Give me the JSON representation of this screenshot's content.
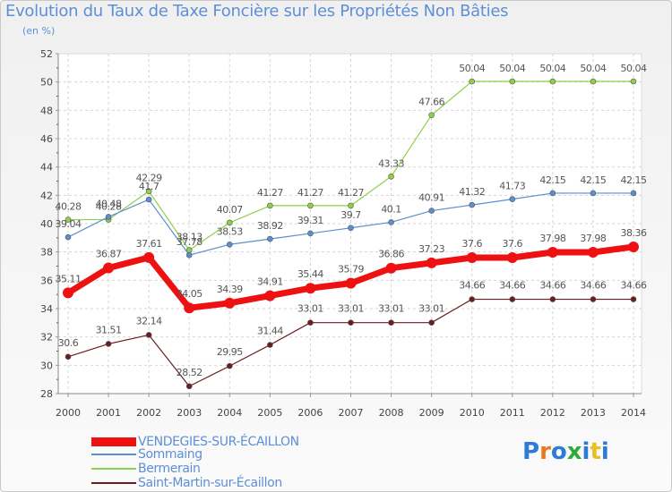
{
  "header": {
    "title": "Evolution du Taux de Taxe Foncière sur les Propriétés Non Bâties",
    "subtitle": "(en %)"
  },
  "logo": {
    "text": "Proxiti",
    "colors": [
      "#2e7bd6",
      "#e87a1e",
      "#2e7bd6",
      "#2eaa3c",
      "#2e7bd6",
      "#e8c020",
      "#2e7bd6"
    ]
  },
  "chart_data": {
    "type": "line",
    "title": "Evolution du Taux de Taxe Foncière sur les Propriétés Non Bâties",
    "ylabel": "(en %)",
    "xlabel": "",
    "x": [
      "2000",
      "2001",
      "2002",
      "2003",
      "2004",
      "2005",
      "2006",
      "2007",
      "2008",
      "2009",
      "2010",
      "2011",
      "2012",
      "2013",
      "2014"
    ],
    "ylim": [
      28,
      52
    ],
    "yticks": [
      28,
      30,
      32,
      34,
      36,
      38,
      40,
      42,
      44,
      46,
      48,
      50,
      52
    ],
    "grid": true,
    "legend_position": "bottom-left",
    "series": [
      {
        "name": "Saint-Martin-sur-Écaillon",
        "color": "#6b1e22",
        "values": [
          30.6,
          31.51,
          32.14,
          28.52,
          29.95,
          31.44,
          33.01,
          33.01,
          33.01,
          33.01,
          34.66,
          34.66,
          34.66,
          34.66,
          34.66
        ],
        "labels": [
          "30.6",
          "31.51",
          "32.14",
          "28.52",
          "29.95",
          "31.44",
          "33.01",
          "33.01",
          "33.01",
          "33.01",
          "34.66",
          "34.66",
          "34.66",
          "34.66",
          "34.66"
        ]
      },
      {
        "name": "Bermerain",
        "color": "#8fd048",
        "values": [
          40.28,
          40.28,
          42.29,
          38.13,
          40.07,
          41.27,
          41.27,
          41.27,
          43.33,
          47.66,
          50.04,
          50.04,
          50.04,
          50.04,
          50.04
        ],
        "labels": [
          "40.28",
          "40.28",
          "42.29",
          "38.13",
          "40.07",
          "41.27",
          "41.27",
          "41.27",
          "43.33",
          "47.66",
          "50.04",
          "50.04",
          "50.04",
          "50.04",
          "50.04"
        ]
      },
      {
        "name": "Sommaing",
        "color": "#5b8fcf",
        "values": [
          39.04,
          40.48,
          41.7,
          37.78,
          38.53,
          38.92,
          39.31,
          39.7,
          40.1,
          40.91,
          41.32,
          41.73,
          42.15,
          42.15,
          42.15
        ],
        "labels": [
          "39.04",
          "40.48",
          "41.7",
          "37.78",
          "38.53",
          "38.92",
          "39.31",
          "39.7",
          "40.1",
          "40.91",
          "41.32",
          "41.73",
          "42.15",
          "42.15",
          "42.15"
        ]
      },
      {
        "name": "VENDEGIES-SUR-ÉCAILLON",
        "color": "#ee1111",
        "values": [
          35.11,
          36.87,
          37.61,
          34.05,
          34.39,
          34.91,
          35.44,
          35.79,
          36.86,
          37.23,
          37.6,
          37.6,
          37.98,
          37.98,
          38.36
        ],
        "labels": [
          "35.11",
          "36.87",
          "37.61",
          "34.05",
          "34.39",
          "34.91",
          "35.44",
          "35.79",
          "36.86",
          "37.23",
          "37.6",
          "37.6",
          "37.98",
          "37.98",
          "38.36"
        ]
      }
    ],
    "legend": [
      {
        "label": "VENDEGIES-SUR-ÉCAILLON",
        "color": "#ee1111"
      },
      {
        "label": "Sommaing",
        "color": "#5b8fcf"
      },
      {
        "label": "Bermerain",
        "color": "#8fd048"
      },
      {
        "label": "Saint-Martin-sur-Écaillon",
        "color": "#6b1e22"
      }
    ]
  }
}
